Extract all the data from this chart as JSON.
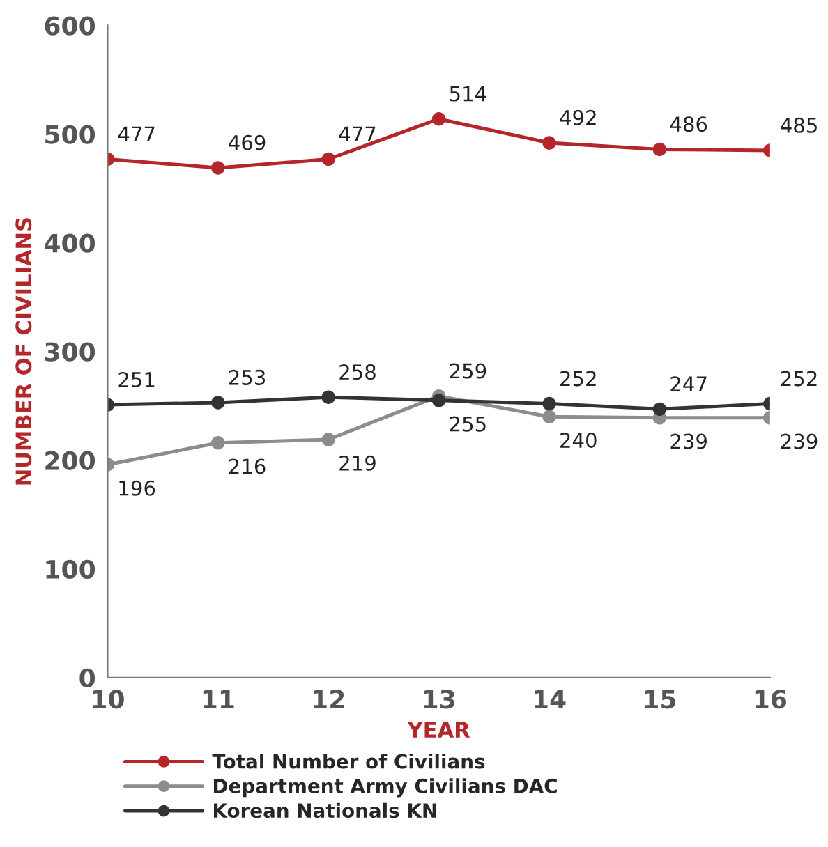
{
  "chart_data": {
    "type": "line",
    "xlabel": "YEAR",
    "ylabel": "NUMBER OF CIVILIANS",
    "categories": [
      "10",
      "11",
      "12",
      "13",
      "14",
      "15",
      "16"
    ],
    "series": [
      {
        "name": "Total Number of Civilians",
        "color": "#b5262b",
        "values": [
          477,
          469,
          477,
          514,
          492,
          486,
          485
        ]
      },
      {
        "name": "Department Army Civilians DAC",
        "color": "#8c8c8c",
        "values": [
          196,
          216,
          219,
          259,
          240,
          239,
          239
        ]
      },
      {
        "name": "Korean Nationals KN",
        "color": "#333333",
        "values": [
          251,
          253,
          258,
          255,
          252,
          247,
          252
        ]
      }
    ],
    "ylim": [
      0,
      600
    ],
    "yticks": [
      0,
      100,
      200,
      300,
      400,
      500,
      600
    ],
    "data_labels": true,
    "marker": "circle",
    "line_style": "solid",
    "grid": false,
    "legend": "bottom"
  }
}
